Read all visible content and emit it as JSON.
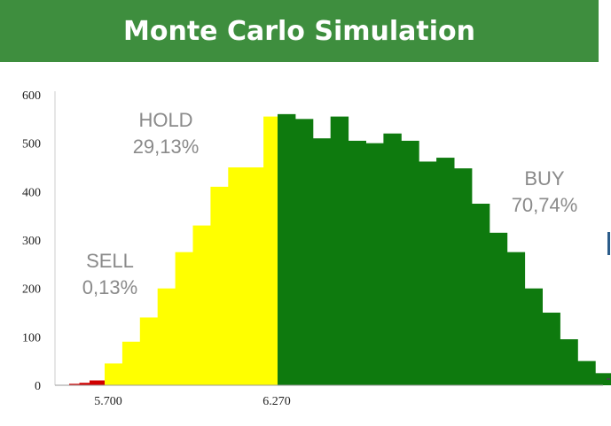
{
  "title": "Monte Carlo Simulation",
  "chart_data": {
    "type": "bar",
    "title": "Monte Carlo Simulation",
    "xlabel": "",
    "ylabel": "",
    "ylim": [
      0,
      600
    ],
    "y_ticks": [
      "0",
      "100",
      "200",
      "300",
      "400",
      "500",
      "600"
    ],
    "x_tick_labels": [
      "5.700",
      "6.270"
    ],
    "grid": false,
    "zone_colors": {
      "sell": "#d00000",
      "hold": "#ffff00",
      "buy": "#0e7a0e"
    },
    "sell_values": [
      3,
      5,
      10,
      10
    ],
    "hold_values": [
      45,
      90,
      140,
      200,
      275,
      330,
      410,
      450,
      450,
      555
    ],
    "buy_values": [
      560,
      550,
      510,
      555,
      505,
      500,
      520,
      505,
      462,
      470,
      448,
      375,
      315,
      275,
      200,
      150,
      95,
      50,
      25
    ],
    "annotations": [
      {
        "zone": "sell",
        "label": "SELL",
        "value": "0,13%"
      },
      {
        "zone": "hold",
        "label": "HOLD",
        "value": "29,13%"
      },
      {
        "zone": "buy",
        "label": "BUY",
        "value": "70,74%"
      }
    ]
  }
}
